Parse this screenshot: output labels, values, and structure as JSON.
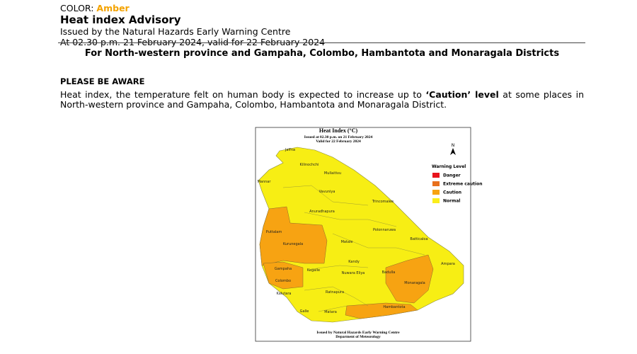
{
  "header": {
    "color_label": "COLOR:",
    "color_value": "Amber",
    "title": "Heat index Advisory",
    "issued_by": "Issued by the Natural Hazards Early Warning Centre",
    "issued_at": "At 02.30 p.m. 21 February 2024, valid for 22 February 2024"
  },
  "headline": "For North-western province and Gampaha, Colombo, Hambantota and Monaragala Districts",
  "notice": "PLEASE BE AWARE",
  "body": {
    "text_before": "Heat index, the temperature felt on human body is expected to increase up to ",
    "emphasis": "‘Caution’ level",
    "text_after": " at some places in North-western province and Gampaha, Colombo, Hambantota and Monaragala District."
  },
  "map": {
    "title": "Heat Index (°C)",
    "issued": "Issued at 02.30 p.m. on 21 February 2024",
    "valid": "Valid for 22 February 2024",
    "north": "N",
    "legend": {
      "title": "Warning Level",
      "items": [
        {
          "label": "Danger",
          "color": "#e8141c"
        },
        {
          "label": "Extreme caution",
          "color": "#e8701c"
        },
        {
          "label": "Caution",
          "color": "#f7a312"
        },
        {
          "label": "Normal",
          "color": "#fbee1c"
        }
      ]
    },
    "districts": [
      "Jaffna",
      "Kilinochchi",
      "Mullaitivu",
      "Mannar",
      "Vavuniya",
      "Trincomalee",
      "Anuradhapura",
      "Polonnaruwa",
      "Puttalam",
      "Kurunegala",
      "Matale",
      "Batticaloa",
      "Kandy",
      "Gampaha",
      "Kegalle",
      "Nuwara Eliya",
      "Badulla",
      "Ampara",
      "Colombo",
      "Monaragala",
      "Kalutara",
      "Ratnapura",
      "Galle",
      "Matara",
      "Hambantota"
    ],
    "footer": [
      "Issued by Natural Hazards Early Warning Centre",
      "Deparment of Meteorology"
    ]
  }
}
